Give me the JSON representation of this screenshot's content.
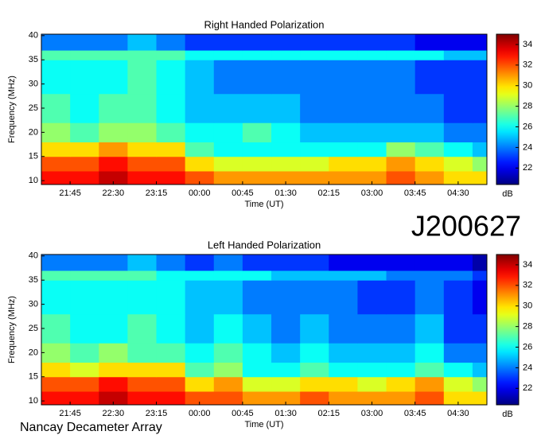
{
  "chart_data": [
    {
      "type": "heatmap",
      "title": "Right Handed Polarization",
      "xlabel": "Time (UT)",
      "ylabel": "Frequency (MHz)",
      "colorbar_label": "dB",
      "colormap": "jet",
      "annotation": "J200627",
      "x_bins": [
        21.25,
        21.75,
        22.25,
        22.75,
        23.25,
        23.75,
        24.25,
        24.75,
        25.25,
        25.75,
        26.25,
        26.75,
        27.25,
        27.75,
        28.25,
        28.75,
        29.0
      ],
      "y_bins": [
        9.2,
        12,
        15,
        18,
        22,
        28,
        35,
        37,
        40.3
      ],
      "z": [
        [
          33,
          33,
          34,
          33,
          33,
          32,
          31,
          31,
          31,
          31,
          31,
          31,
          32,
          31,
          30,
          30
        ],
        [
          32,
          32,
          33,
          32,
          32,
          30,
          29,
          29,
          29,
          29,
          30,
          30,
          31,
          30,
          29,
          28
        ],
        [
          30,
          30,
          31,
          30,
          30,
          27,
          26,
          26,
          26,
          26,
          26,
          26,
          28,
          27,
          26,
          25
        ],
        [
          28,
          27,
          28,
          28,
          27,
          26,
          26,
          27,
          26,
          25,
          25,
          25,
          25,
          25,
          24,
          24
        ],
        [
          27,
          26,
          27,
          27,
          26,
          25,
          25,
          25,
          25,
          24,
          24,
          24,
          24,
          24,
          23,
          23
        ],
        [
          26,
          26,
          26,
          27,
          26,
          25,
          24,
          24,
          24,
          24,
          24,
          24,
          24,
          23,
          23,
          23
        ],
        [
          27,
          27,
          27,
          27,
          27,
          26,
          26,
          26,
          26,
          26,
          26,
          26,
          26,
          26,
          25,
          25
        ],
        [
          24,
          24,
          24,
          25,
          24,
          23,
          23,
          23,
          23,
          23,
          23,
          23,
          23,
          22,
          22,
          22
        ]
      ],
      "xlim": [
        21.25,
        29.0
      ],
      "ylim": [
        9.2,
        40.3
      ],
      "clim": [
        20.4,
        35.0
      ],
      "xticks": [
        {
          "value": 21.75,
          "label": "21:45"
        },
        {
          "value": 22.5,
          "label": "22:30"
        },
        {
          "value": 23.25,
          "label": "23:15"
        },
        {
          "value": 24,
          "label": "00:00"
        },
        {
          "value": 24.75,
          "label": "00:45"
        },
        {
          "value": 25.5,
          "label": "01:30"
        },
        {
          "value": 26.25,
          "label": "02:15"
        },
        {
          "value": 27,
          "label": "03:00"
        },
        {
          "value": 27.75,
          "label": "03:45"
        },
        {
          "value": 28.5,
          "label": "04:30"
        }
      ],
      "yticks": [
        10,
        15,
        20,
        25,
        30,
        35,
        40
      ],
      "cticks": [
        22,
        24,
        26,
        28,
        30,
        32,
        34
      ]
    },
    {
      "type": "heatmap",
      "title": "Left Handed Polarization",
      "xlabel": "Time (UT)",
      "ylabel": "Frequency (MHz)",
      "colorbar_label": "dB",
      "colormap": "jet",
      "annotation": "Nancay Decameter Array",
      "x_bins": [
        21.25,
        21.75,
        22.25,
        22.75,
        23.25,
        23.75,
        24.25,
        24.75,
        25.25,
        25.75,
        26.25,
        26.75,
        27.25,
        27.75,
        28.25,
        28.75,
        29.0
      ],
      "y_bins": [
        9.2,
        12,
        15,
        18,
        22,
        28,
        35,
        37,
        40.3
      ],
      "z": [
        [
          33,
          33,
          34,
          33,
          33,
          32,
          32,
          31,
          31,
          32,
          31,
          31,
          31,
          32,
          30,
          30
        ],
        [
          32,
          32,
          33,
          32,
          32,
          30,
          31,
          29,
          29,
          30,
          30,
          29,
          30,
          31,
          29,
          28
        ],
        [
          30,
          29,
          30,
          30,
          30,
          27,
          28,
          26,
          26,
          27,
          26,
          26,
          26,
          27,
          26,
          25
        ],
        [
          28,
          27,
          28,
          27,
          27,
          26,
          27,
          26,
          25,
          26,
          25,
          25,
          25,
          26,
          24,
          24
        ],
        [
          27,
          26,
          26,
          27,
          26,
          25,
          26,
          25,
          24,
          25,
          24,
          24,
          24,
          25,
          23,
          23
        ],
        [
          26,
          26,
          26,
          26,
          26,
          25,
          25,
          24,
          24,
          24,
          24,
          23,
          23,
          24,
          23,
          22
        ],
        [
          27,
          27,
          27,
          27,
          26,
          26,
          26,
          26,
          25,
          25,
          25,
          25,
          24,
          24,
          24,
          23
        ],
        [
          24,
          24,
          24,
          25,
          24,
          23,
          24,
          23,
          23,
          23,
          22,
          22,
          22,
          22,
          22,
          21
        ]
      ],
      "xlim": [
        21.25,
        29.0
      ],
      "ylim": [
        9.2,
        40.3
      ],
      "clim": [
        20.4,
        35.0
      ],
      "xticks": [
        {
          "value": 21.75,
          "label": "21:45"
        },
        {
          "value": 22.5,
          "label": "22:30"
        },
        {
          "value": 23.25,
          "label": "23:15"
        },
        {
          "value": 24,
          "label": "00:00"
        },
        {
          "value": 24.75,
          "label": "00:45"
        },
        {
          "value": 25.5,
          "label": "01:30"
        },
        {
          "value": 26.25,
          "label": "02:15"
        },
        {
          "value": 27,
          "label": "03:00"
        },
        {
          "value": 27.75,
          "label": "03:45"
        },
        {
          "value": 28.5,
          "label": "04:30"
        }
      ],
      "yticks": [
        10,
        15,
        20,
        25,
        30,
        35,
        40
      ],
      "cticks": [
        22,
        24,
        26,
        28,
        30,
        32,
        34
      ]
    }
  ]
}
